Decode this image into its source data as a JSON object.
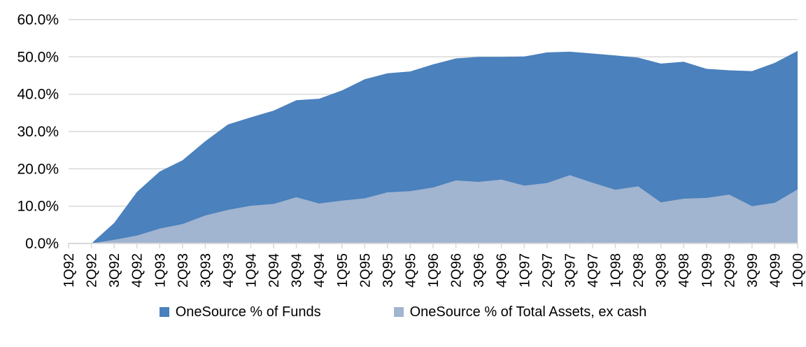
{
  "chart_data": {
    "type": "area",
    "title": "",
    "xlabel": "",
    "ylabel": "",
    "categories": [
      "1Q92",
      "2Q92",
      "3Q92",
      "4Q92",
      "1Q93",
      "2Q93",
      "3Q93",
      "4Q93",
      "1Q94",
      "2Q94",
      "3Q94",
      "4Q94",
      "1Q95",
      "2Q95",
      "3Q95",
      "4Q95",
      "1Q96",
      "2Q96",
      "3Q96",
      "4Q96",
      "1Q97",
      "2Q97",
      "3Q97",
      "4Q97",
      "1Q98",
      "2Q98",
      "3Q98",
      "4Q98",
      "1Q99",
      "2Q99",
      "3Q99",
      "4Q99",
      "1Q00"
    ],
    "series": [
      {
        "name": "OneSource % of Funds",
        "color": "#4B81BC",
        "values": [
          0.0,
          0.0,
          5.5,
          13.8,
          19.3,
          22.3,
          27.4,
          31.9,
          33.8,
          35.6,
          38.4,
          38.8,
          41.0,
          44.0,
          45.6,
          46.1,
          48.0,
          49.6,
          50.0,
          50.0,
          50.1,
          51.2,
          51.4,
          50.9,
          50.4,
          49.8,
          48.2,
          48.7,
          46.8,
          46.4,
          46.2,
          48.4,
          51.6
        ]
      },
      {
        "name": "OneSource % of Total Assets, ex cash",
        "color": "#A1B4D0",
        "values": [
          0.0,
          0.0,
          1.0,
          2.1,
          4.0,
          5.2,
          7.5,
          9.0,
          10.1,
          10.6,
          12.4,
          10.7,
          11.5,
          12.1,
          13.7,
          14.0,
          15.0,
          16.9,
          16.5,
          17.1,
          15.5,
          16.2,
          18.3,
          16.3,
          14.4,
          15.3,
          11.0,
          12.0,
          12.2,
          13.1,
          10.0,
          10.9,
          14.5
        ]
      }
    ],
    "y_ticks": [
      "0.0%",
      "10.0%",
      "20.0%",
      "30.0%",
      "40.0%",
      "50.0%",
      "60.0%"
    ],
    "ylim": [
      0,
      60
    ],
    "y_tick_step": 10,
    "grid": true,
    "legend_position": "bottom",
    "gridline_color": "#D9D9D9",
    "axis_text_color": "#000000"
  }
}
